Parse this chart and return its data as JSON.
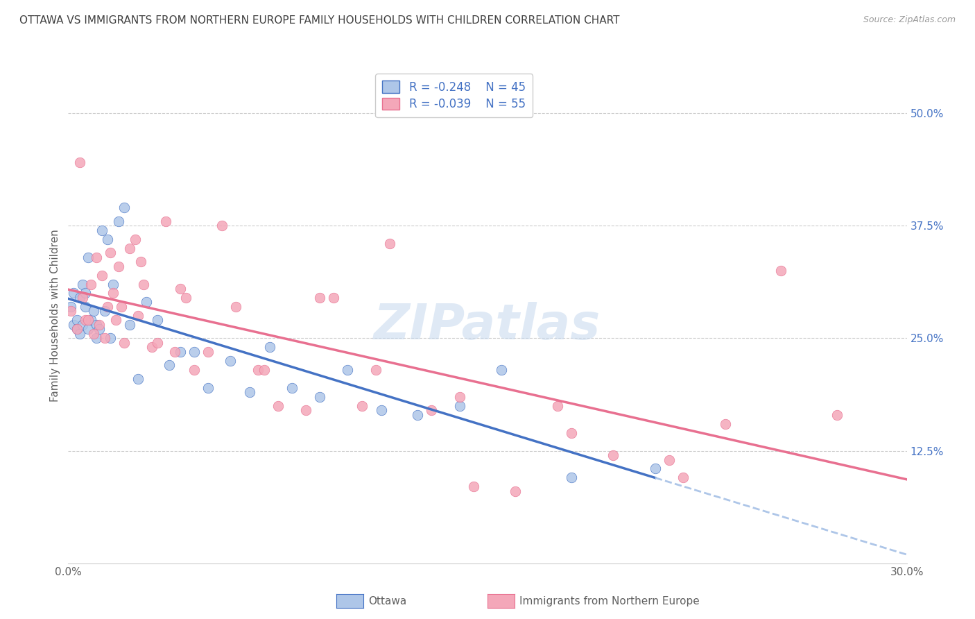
{
  "title": "OTTAWA VS IMMIGRANTS FROM NORTHERN EUROPE FAMILY HOUSEHOLDS WITH CHILDREN CORRELATION CHART",
  "source": "Source: ZipAtlas.com",
  "ylabel": "Family Households with Children",
  "legend_ottawa": "Ottawa",
  "legend_immigrants": "Immigrants from Northern Europe",
  "R_ottawa": -0.248,
  "N_ottawa": 45,
  "R_immigrants": -0.039,
  "N_immigrants": 55,
  "xmin": 0.0,
  "xmax": 0.3,
  "ymin": 0.0,
  "ymax": 0.55,
  "yticks": [
    0.0,
    0.125,
    0.25,
    0.375,
    0.5
  ],
  "ytick_labels": [
    "",
    "12.5%",
    "25.0%",
    "37.5%",
    "50.0%"
  ],
  "xticks": [
    0.0,
    0.05,
    0.1,
    0.15,
    0.2,
    0.25,
    0.3
  ],
  "xtick_labels": [
    "0.0%",
    "",
    "",
    "",
    "",
    "",
    "30.0%"
  ],
  "color_ottawa": "#aec6e8",
  "color_immigrants": "#f4a7b9",
  "color_ottawa_line": "#4472c4",
  "color_immigrants_line": "#e87090",
  "color_dashed": "#aec6e8",
  "background_color": "#ffffff",
  "grid_color": "#cccccc",
  "title_color": "#404040",
  "title_fontsize": 11,
  "axis_label_color": "#606060",
  "tick_color_right": "#4472c4",
  "ottawa_x": [
    0.001,
    0.002,
    0.002,
    0.003,
    0.003,
    0.004,
    0.004,
    0.005,
    0.005,
    0.006,
    0.006,
    0.007,
    0.007,
    0.008,
    0.009,
    0.01,
    0.01,
    0.011,
    0.012,
    0.013,
    0.014,
    0.015,
    0.016,
    0.018,
    0.02,
    0.022,
    0.025,
    0.028,
    0.032,
    0.036,
    0.04,
    0.045,
    0.05,
    0.058,
    0.065,
    0.072,
    0.08,
    0.09,
    0.1,
    0.112,
    0.125,
    0.14,
    0.155,
    0.18,
    0.21
  ],
  "ottawa_y": [
    0.285,
    0.3,
    0.265,
    0.27,
    0.26,
    0.295,
    0.255,
    0.31,
    0.265,
    0.285,
    0.3,
    0.26,
    0.34,
    0.27,
    0.28,
    0.265,
    0.25,
    0.26,
    0.37,
    0.28,
    0.36,
    0.25,
    0.31,
    0.38,
    0.395,
    0.265,
    0.205,
    0.29,
    0.27,
    0.22,
    0.235,
    0.235,
    0.195,
    0.225,
    0.19,
    0.24,
    0.195,
    0.185,
    0.215,
    0.17,
    0.165,
    0.175,
    0.215,
    0.095,
    0.105
  ],
  "immigrants_x": [
    0.001,
    0.003,
    0.004,
    0.005,
    0.006,
    0.007,
    0.008,
    0.009,
    0.01,
    0.011,
    0.012,
    0.013,
    0.014,
    0.015,
    0.016,
    0.017,
    0.018,
    0.019,
    0.02,
    0.022,
    0.024,
    0.025,
    0.026,
    0.027,
    0.03,
    0.032,
    0.035,
    0.038,
    0.042,
    0.045,
    0.05,
    0.055,
    0.06,
    0.068,
    0.075,
    0.085,
    0.095,
    0.105,
    0.115,
    0.13,
    0.145,
    0.16,
    0.175,
    0.195,
    0.215,
    0.235,
    0.255,
    0.275,
    0.22,
    0.18,
    0.14,
    0.11,
    0.09,
    0.07,
    0.04
  ],
  "immigrants_y": [
    0.28,
    0.26,
    0.445,
    0.295,
    0.27,
    0.27,
    0.31,
    0.255,
    0.34,
    0.265,
    0.32,
    0.25,
    0.285,
    0.345,
    0.3,
    0.27,
    0.33,
    0.285,
    0.245,
    0.35,
    0.36,
    0.275,
    0.335,
    0.31,
    0.24,
    0.245,
    0.38,
    0.235,
    0.295,
    0.215,
    0.235,
    0.375,
    0.285,
    0.215,
    0.175,
    0.17,
    0.295,
    0.175,
    0.355,
    0.17,
    0.085,
    0.08,
    0.175,
    0.12,
    0.115,
    0.155,
    0.325,
    0.165,
    0.095,
    0.145,
    0.185,
    0.215,
    0.295,
    0.215,
    0.305
  ]
}
